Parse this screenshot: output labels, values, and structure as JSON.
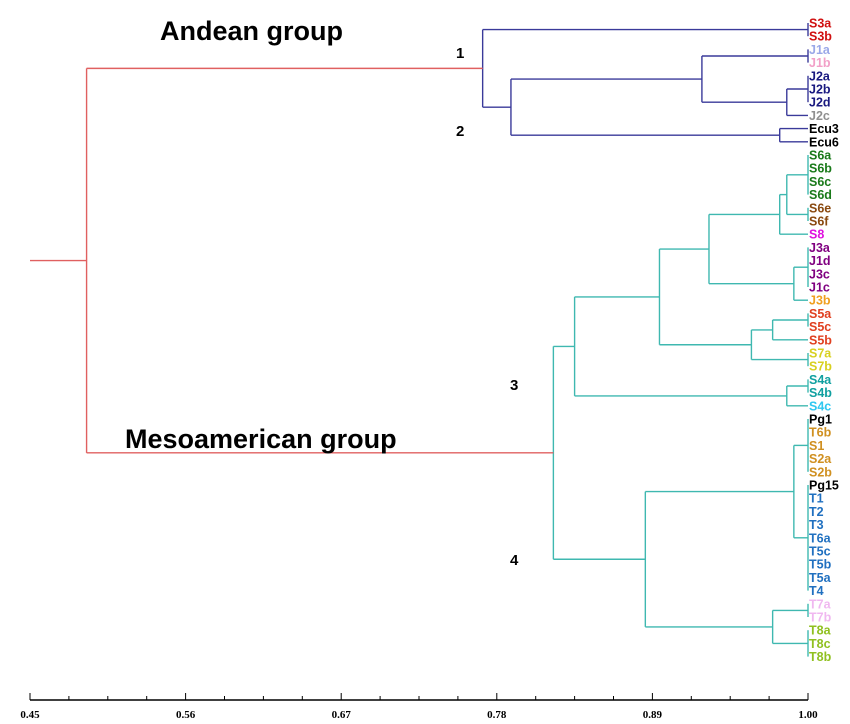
{
  "groups": {
    "andean": "Andean group",
    "mesoamerican": "Mesoamerican group"
  },
  "cluster_labels": [
    "1",
    "2",
    "3",
    "4"
  ],
  "colors": {
    "root_branch": "#e06060",
    "andean_branch": "#3a3a9a",
    "meso_branch": "#3fb8b0",
    "axis": "#000000"
  },
  "chart_data": {
    "type": "dendrogram",
    "axis": {
      "range": [
        0.45,
        1.0
      ],
      "tick_labels": [
        "0.45",
        "0.56",
        "0.67",
        "0.78",
        "0.89",
        "1.00"
      ],
      "minor_step": 0.0275
    },
    "leaves": [
      {
        "name": "S3a",
        "color": "#d01010"
      },
      {
        "name": "S3b",
        "color": "#d01010"
      },
      {
        "name": "J1a",
        "color": "#9aa8e8"
      },
      {
        "name": "J1b",
        "color": "#f2a0c8"
      },
      {
        "name": "J2a",
        "color": "#1a1a80"
      },
      {
        "name": "J2b",
        "color": "#1a1a80"
      },
      {
        "name": "J2d",
        "color": "#1a1a80"
      },
      {
        "name": "J2c",
        "color": "#909090"
      },
      {
        "name": "Ecu3",
        "color": "#000000"
      },
      {
        "name": "Ecu6",
        "color": "#000000"
      },
      {
        "name": "S6a",
        "color": "#1a7a1a"
      },
      {
        "name": "S6b",
        "color": "#1a7a1a"
      },
      {
        "name": "S6c",
        "color": "#1a7a1a"
      },
      {
        "name": "S6d",
        "color": "#1a7a1a"
      },
      {
        "name": "S6e",
        "color": "#8a4a10"
      },
      {
        "name": "S6f",
        "color": "#8a4a10"
      },
      {
        "name": "S8",
        "color": "#e010e0"
      },
      {
        "name": "J3a",
        "color": "#800080"
      },
      {
        "name": "J1d",
        "color": "#800080"
      },
      {
        "name": "J3c",
        "color": "#800080"
      },
      {
        "name": "J1c",
        "color": "#800080"
      },
      {
        "name": "J3b",
        "color": "#f0a020"
      },
      {
        "name": "S5a",
        "color": "#e04020"
      },
      {
        "name": "S5c",
        "color": "#e04020"
      },
      {
        "name": "S5b",
        "color": "#e04020"
      },
      {
        "name": "S7a",
        "color": "#d8d020"
      },
      {
        "name": "S7b",
        "color": "#d8d020"
      },
      {
        "name": "S4a",
        "color": "#10a0a0"
      },
      {
        "name": "S4b",
        "color": "#10a0a0"
      },
      {
        "name": "S4c",
        "color": "#30c8f0"
      },
      {
        "name": "Pg1",
        "color": "#000000"
      },
      {
        "name": "T6b",
        "color": "#d09020"
      },
      {
        "name": "S1",
        "color": "#d09020"
      },
      {
        "name": "S2a",
        "color": "#d09020"
      },
      {
        "name": "S2b",
        "color": "#d09020"
      },
      {
        "name": "Pg15",
        "color": "#000000"
      },
      {
        "name": "T1",
        "color": "#2070c0"
      },
      {
        "name": "T2",
        "color": "#2070c0"
      },
      {
        "name": "T3",
        "color": "#2070c0"
      },
      {
        "name": "T6a",
        "color": "#2070c0"
      },
      {
        "name": "T5c",
        "color": "#2070c0"
      },
      {
        "name": "T5b",
        "color": "#2070c0"
      },
      {
        "name": "T5a",
        "color": "#2070c0"
      },
      {
        "name": "T4",
        "color": "#2070c0"
      },
      {
        "name": "T7a",
        "color": "#f0b8f0"
      },
      {
        "name": "T7b",
        "color": "#f0b8f0"
      },
      {
        "name": "T8a",
        "color": "#90c020"
      },
      {
        "name": "T8c",
        "color": "#90c020"
      },
      {
        "name": "T8b",
        "color": "#90c020"
      }
    ],
    "tree": {
      "h": 0.45,
      "color": "root_branch",
      "children": [
        {
          "h": 0.49,
          "color": "root_branch",
          "children": [
            {
              "h": 0.77,
              "color": "andean_branch",
              "children": [
                {
                  "h": 1.0,
                  "color": "andean_branch",
                  "children": [
                    {
                      "leaf": 0
                    },
                    {
                      "leaf": 1
                    }
                  ]
                },
                {
                  "h": 0.79,
                  "color": "andean_branch",
                  "children": [
                    {
                      "h": 0.925,
                      "color": "andean_branch",
                      "children": [
                        {
                          "h": 1.0,
                          "color": "andean_branch",
                          "children": [
                            {
                              "leaf": 2
                            },
                            {
                              "leaf": 3
                            }
                          ]
                        },
                        {
                          "h": 0.985,
                          "color": "andean_branch",
                          "children": [
                            {
                              "h": 1.0,
                              "color": "andean_branch",
                              "children": [
                                {
                                  "leaf": 4
                                },
                                {
                                  "leaf": 5
                                },
                                {
                                  "leaf": 6
                                }
                              ]
                            },
                            {
                              "leaf": 7
                            }
                          ]
                        }
                      ]
                    },
                    {
                      "h": 0.98,
                      "color": "andean_branch",
                      "children": [
                        {
                          "leaf": 8
                        },
                        {
                          "leaf": 9
                        }
                      ]
                    }
                  ]
                }
              ]
            },
            {
              "h": 0.82,
              "color": "meso_branch",
              "children": [
                {
                  "h": 0.835,
                  "color": "meso_branch",
                  "children": [
                    {
                      "h": 0.895,
                      "color": "meso_branch",
                      "children": [
                        {
                          "h": 0.93,
                          "color": "meso_branch",
                          "children": [
                            {
                              "h": 0.98,
                              "color": "meso_branch",
                              "children": [
                                {
                                  "h": 0.985,
                                  "color": "meso_branch",
                                  "children": [
                                    {
                                      "h": 1.0,
                                      "color": "meso_branch",
                                      "children": [
                                        {
                                          "leaf": 10
                                        },
                                        {
                                          "leaf": 11
                                        },
                                        {
                                          "leaf": 12
                                        },
                                        {
                                          "leaf": 13
                                        }
                                      ]
                                    },
                                    {
                                      "h": 1.0,
                                      "color": "meso_branch",
                                      "children": [
                                        {
                                          "leaf": 14
                                        },
                                        {
                                          "leaf": 15
                                        }
                                      ]
                                    }
                                  ]
                                },
                                {
                                  "leaf": 16
                                }
                              ]
                            },
                            {
                              "h": 0.99,
                              "color": "meso_branch",
                              "children": [
                                {
                                  "h": 1.0,
                                  "color": "meso_branch",
                                  "children": [
                                    {
                                      "leaf": 17
                                    },
                                    {
                                      "leaf": 18
                                    },
                                    {
                                      "leaf": 19
                                    },
                                    {
                                      "leaf": 20
                                    }
                                  ]
                                },
                                {
                                  "leaf": 21
                                }
                              ]
                            }
                          ]
                        },
                        {
                          "h": 0.96,
                          "color": "meso_branch",
                          "children": [
                            {
                              "h": 0.975,
                              "color": "meso_branch",
                              "children": [
                                {
                                  "h": 1.0,
                                  "color": "meso_branch",
                                  "children": [
                                    {
                                      "leaf": 22
                                    },
                                    {
                                      "leaf": 23
                                    }
                                  ]
                                },
                                {
                                  "leaf": 24
                                }
                              ]
                            },
                            {
                              "h": 1.0,
                              "color": "meso_branch",
                              "children": [
                                {
                                  "leaf": 25
                                },
                                {
                                  "leaf": 26
                                }
                              ]
                            }
                          ]
                        }
                      ]
                    },
                    {
                      "h": 0.985,
                      "color": "meso_branch",
                      "children": [
                        {
                          "h": 1.0,
                          "color": "meso_branch",
                          "children": [
                            {
                              "leaf": 27
                            },
                            {
                              "leaf": 28
                            }
                          ]
                        },
                        {
                          "leaf": 29
                        }
                      ]
                    }
                  ]
                },
                {
                  "h": 0.885,
                  "color": "meso_branch",
                  "children": [
                    {
                      "h": 0.99,
                      "color": "meso_branch",
                      "children": [
                        {
                          "h": 1.0,
                          "color": "meso_branch",
                          "children": [
                            {
                              "leaf": 30
                            },
                            {
                              "leaf": 31
                            },
                            {
                              "leaf": 32
                            },
                            {
                              "leaf": 33
                            },
                            {
                              "leaf": 34
                            }
                          ]
                        },
                        {
                          "h": 1.0,
                          "color": "meso_branch",
                          "children": [
                            {
                              "leaf": 35
                            },
                            {
                              "leaf": 36
                            },
                            {
                              "leaf": 37
                            },
                            {
                              "leaf": 38
                            },
                            {
                              "leaf": 39
                            },
                            {
                              "leaf": 40
                            },
                            {
                              "leaf": 41
                            },
                            {
                              "leaf": 42
                            },
                            {
                              "leaf": 43
                            }
                          ]
                        }
                      ]
                    },
                    {
                      "h": 0.975,
                      "color": "meso_branch",
                      "children": [
                        {
                          "h": 1.0,
                          "color": "meso_branch",
                          "children": [
                            {
                              "leaf": 44
                            },
                            {
                              "leaf": 45
                            }
                          ]
                        },
                        {
                          "h": 1.0,
                          "color": "meso_branch",
                          "children": [
                            {
                              "leaf": 46
                            },
                            {
                              "leaf": 47
                            },
                            {
                              "leaf": 48
                            }
                          ]
                        }
                      ]
                    }
                  ]
                }
              ]
            }
          ]
        }
      ]
    }
  }
}
